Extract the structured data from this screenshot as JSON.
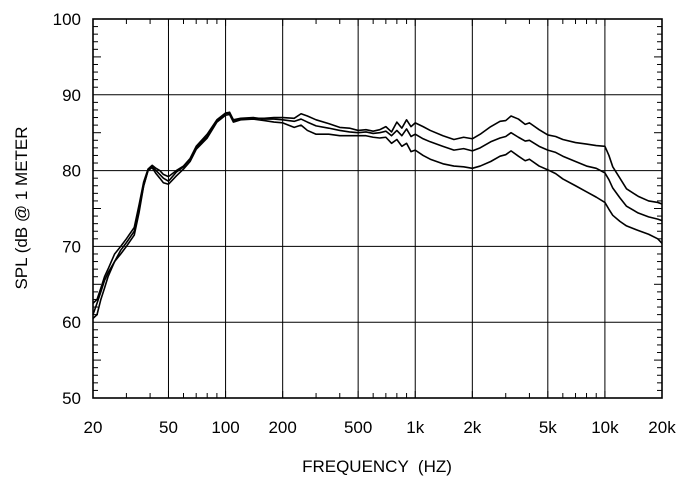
{
  "chart_data": {
    "type": "line",
    "title": "",
    "xlabel": "FREQUENCY  (HZ)",
    "ylabel": "SPL (dB @ 1 METER",
    "x_scale": "log",
    "xlim": [
      20,
      20000
    ],
    "ylim": [
      50,
      100
    ],
    "grid": true,
    "legend": "none",
    "x_ticks": [
      {
        "value": 20,
        "label": "20"
      },
      {
        "value": 50,
        "label": "50"
      },
      {
        "value": 100,
        "label": "100"
      },
      {
        "value": 200,
        "label": "200"
      },
      {
        "value": 500,
        "label": "500"
      },
      {
        "value": 1000,
        "label": "1k"
      },
      {
        "value": 2000,
        "label": "2k"
      },
      {
        "value": 5000,
        "label": "5k"
      },
      {
        "value": 10000,
        "label": "10k"
      },
      {
        "value": 20000,
        "label": "20k"
      }
    ],
    "y_ticks": [
      {
        "value": 50,
        "label": "50"
      },
      {
        "value": 60,
        "label": "60"
      },
      {
        "value": 70,
        "label": "70"
      },
      {
        "value": 80,
        "label": "80"
      },
      {
        "value": 90,
        "label": "90"
      },
      {
        "value": 100,
        "label": "100"
      }
    ],
    "series": [
      {
        "color": "#000000",
        "points": [
          [
            20,
            61
          ],
          [
            21,
            62.5
          ],
          [
            22,
            64
          ],
          [
            23,
            65.5
          ],
          [
            24,
            66.5
          ],
          [
            26,
            68
          ],
          [
            28,
            69.5
          ],
          [
            30,
            70.5
          ],
          [
            33,
            72
          ],
          [
            35,
            75
          ],
          [
            37,
            78
          ],
          [
            39,
            80
          ],
          [
            41,
            80.5
          ],
          [
            43,
            80
          ],
          [
            45,
            79.5
          ],
          [
            47,
            79
          ],
          [
            50,
            78.6
          ],
          [
            55,
            79.8
          ],
          [
            60,
            80.5
          ],
          [
            65,
            81.5
          ],
          [
            70,
            83
          ],
          [
            80,
            84.5
          ],
          [
            90,
            86.5
          ],
          [
            100,
            87.5
          ],
          [
            105,
            87.6
          ],
          [
            110,
            86.6
          ],
          [
            120,
            86.8
          ],
          [
            140,
            86.9
          ],
          [
            160,
            86.9
          ],
          [
            180,
            87
          ],
          [
            200,
            87
          ],
          [
            230,
            86.9
          ],
          [
            250,
            87.5
          ],
          [
            270,
            87.2
          ],
          [
            300,
            86.7
          ],
          [
            350,
            86.2
          ],
          [
            400,
            85.7
          ],
          [
            450,
            85.6
          ],
          [
            500,
            85.3
          ],
          [
            550,
            85.4
          ],
          [
            600,
            85.2
          ],
          [
            650,
            85.4
          ],
          [
            700,
            85.8
          ],
          [
            750,
            85.1
          ],
          [
            800,
            86.4
          ],
          [
            850,
            85.6
          ],
          [
            900,
            86.7
          ],
          [
            950,
            85.8
          ],
          [
            1000,
            86.3
          ],
          [
            1100,
            85.8
          ],
          [
            1200,
            85.3
          ],
          [
            1400,
            84.6
          ],
          [
            1600,
            84.1
          ],
          [
            1800,
            84.4
          ],
          [
            2000,
            84.2
          ],
          [
            2200,
            84.8
          ],
          [
            2500,
            85.8
          ],
          [
            2800,
            86.5
          ],
          [
            3000,
            86.6
          ],
          [
            3200,
            87.2
          ],
          [
            3500,
            86.8
          ],
          [
            3800,
            86.1
          ],
          [
            4000,
            86.3
          ],
          [
            4500,
            85.4
          ],
          [
            5000,
            84.7
          ],
          [
            5500,
            84.5
          ],
          [
            6000,
            84.1
          ],
          [
            7000,
            83.7
          ],
          [
            8000,
            83.5
          ],
          [
            9000,
            83.3
          ],
          [
            10000,
            83.2
          ],
          [
            10500,
            82
          ],
          [
            11000,
            80.5
          ],
          [
            12000,
            79
          ],
          [
            13000,
            77.6
          ],
          [
            15000,
            76.6
          ],
          [
            17000,
            76
          ],
          [
            19000,
            75.8
          ],
          [
            20000,
            75.6
          ]
        ]
      },
      {
        "color": "#000000",
        "points": [
          [
            20,
            62.5
          ],
          [
            21,
            63
          ],
          [
            22,
            64.5
          ],
          [
            23,
            66
          ],
          [
            24,
            67
          ],
          [
            26,
            69
          ],
          [
            28,
            70
          ],
          [
            30,
            71
          ],
          [
            33,
            72.5
          ],
          [
            35,
            75.5
          ],
          [
            37,
            78.5
          ],
          [
            39,
            80.2
          ],
          [
            41,
            80.7
          ],
          [
            43,
            80.3
          ],
          [
            45,
            80
          ],
          [
            47,
            79.5
          ],
          [
            50,
            79.2
          ],
          [
            55,
            80
          ],
          [
            60,
            80.6
          ],
          [
            65,
            81.6
          ],
          [
            70,
            83.2
          ],
          [
            80,
            84.8
          ],
          [
            90,
            86.7
          ],
          [
            100,
            87.6
          ],
          [
            105,
            87.7
          ],
          [
            110,
            86.7
          ],
          [
            120,
            86.9
          ],
          [
            140,
            87
          ],
          [
            160,
            86.8
          ],
          [
            180,
            86.8
          ],
          [
            200,
            86.7
          ],
          [
            230,
            86.5
          ],
          [
            250,
            86.8
          ],
          [
            270,
            86.4
          ],
          [
            300,
            85.9
          ],
          [
            350,
            85.6
          ],
          [
            400,
            85.3
          ],
          [
            450,
            85.1
          ],
          [
            500,
            85
          ],
          [
            550,
            85.1
          ],
          [
            600,
            84.9
          ],
          [
            650,
            85
          ],
          [
            700,
            85.2
          ],
          [
            750,
            84.6
          ],
          [
            800,
            85.3
          ],
          [
            850,
            84.6
          ],
          [
            900,
            85.5
          ],
          [
            950,
            84.5
          ],
          [
            1000,
            84.8
          ],
          [
            1100,
            84.2
          ],
          [
            1200,
            83.8
          ],
          [
            1400,
            83.2
          ],
          [
            1600,
            82.7
          ],
          [
            1800,
            82.9
          ],
          [
            2000,
            82.6
          ],
          [
            2200,
            83
          ],
          [
            2500,
            83.8
          ],
          [
            2800,
            84.3
          ],
          [
            3000,
            84.5
          ],
          [
            3200,
            85
          ],
          [
            3500,
            84.4
          ],
          [
            3800,
            83.9
          ],
          [
            4000,
            84
          ],
          [
            4500,
            83.2
          ],
          [
            5000,
            82.7
          ],
          [
            5500,
            82.4
          ],
          [
            6000,
            81.9
          ],
          [
            7000,
            81.2
          ],
          [
            8000,
            80.6
          ],
          [
            9000,
            80.3
          ],
          [
            10000,
            79.7
          ],
          [
            10500,
            78.8
          ],
          [
            11000,
            77.7
          ],
          [
            12000,
            76.4
          ],
          [
            13000,
            75.3
          ],
          [
            15000,
            74.4
          ],
          [
            17000,
            73.9
          ],
          [
            19000,
            73.6
          ],
          [
            20000,
            73.4
          ]
        ]
      },
      {
        "color": "#000000",
        "points": [
          [
            20,
            60.5
          ],
          [
            21,
            61
          ],
          [
            22,
            63
          ],
          [
            23,
            64.5
          ],
          [
            24,
            66
          ],
          [
            26,
            68
          ],
          [
            28,
            69
          ],
          [
            30,
            70
          ],
          [
            33,
            71.5
          ],
          [
            35,
            74.5
          ],
          [
            37,
            78
          ],
          [
            39,
            80
          ],
          [
            41,
            80.4
          ],
          [
            43,
            79.6
          ],
          [
            45,
            79
          ],
          [
            47,
            78.4
          ],
          [
            50,
            78.2
          ],
          [
            55,
            79.3
          ],
          [
            60,
            80.2
          ],
          [
            65,
            81.2
          ],
          [
            70,
            82.8
          ],
          [
            80,
            84.3
          ],
          [
            90,
            86.4
          ],
          [
            100,
            87.3
          ],
          [
            105,
            87.4
          ],
          [
            110,
            86.4
          ],
          [
            120,
            86.7
          ],
          [
            140,
            86.8
          ],
          [
            160,
            86.6
          ],
          [
            180,
            86.4
          ],
          [
            200,
            86.3
          ],
          [
            230,
            85.7
          ],
          [
            250,
            86
          ],
          [
            270,
            85.3
          ],
          [
            300,
            84.8
          ],
          [
            350,
            84.8
          ],
          [
            400,
            84.6
          ],
          [
            450,
            84.6
          ],
          [
            500,
            84.6
          ],
          [
            550,
            84.6
          ],
          [
            600,
            84.4
          ],
          [
            650,
            84.3
          ],
          [
            700,
            84.4
          ],
          [
            750,
            83.6
          ],
          [
            800,
            84.1
          ],
          [
            850,
            83.2
          ],
          [
            900,
            83.6
          ],
          [
            950,
            82.5
          ],
          [
            1000,
            82.7
          ],
          [
            1100,
            82
          ],
          [
            1200,
            81.5
          ],
          [
            1400,
            80.9
          ],
          [
            1600,
            80.6
          ],
          [
            1800,
            80.5
          ],
          [
            2000,
            80.3
          ],
          [
            2200,
            80.6
          ],
          [
            2500,
            81.2
          ],
          [
            2800,
            81.9
          ],
          [
            3000,
            82.1
          ],
          [
            3200,
            82.6
          ],
          [
            3500,
            81.9
          ],
          [
            3800,
            81.3
          ],
          [
            4000,
            81.5
          ],
          [
            4500,
            80.6
          ],
          [
            5000,
            80.1
          ],
          [
            5500,
            79.6
          ],
          [
            6000,
            78.9
          ],
          [
            7000,
            78
          ],
          [
            8000,
            77.2
          ],
          [
            9000,
            76.5
          ],
          [
            10000,
            75.8
          ],
          [
            10500,
            74.9
          ],
          [
            11000,
            74.1
          ],
          [
            12000,
            73.3
          ],
          [
            13000,
            72.7
          ],
          [
            15000,
            72.1
          ],
          [
            17000,
            71.6
          ],
          [
            19000,
            71
          ],
          [
            20000,
            70.4
          ]
        ]
      }
    ]
  }
}
